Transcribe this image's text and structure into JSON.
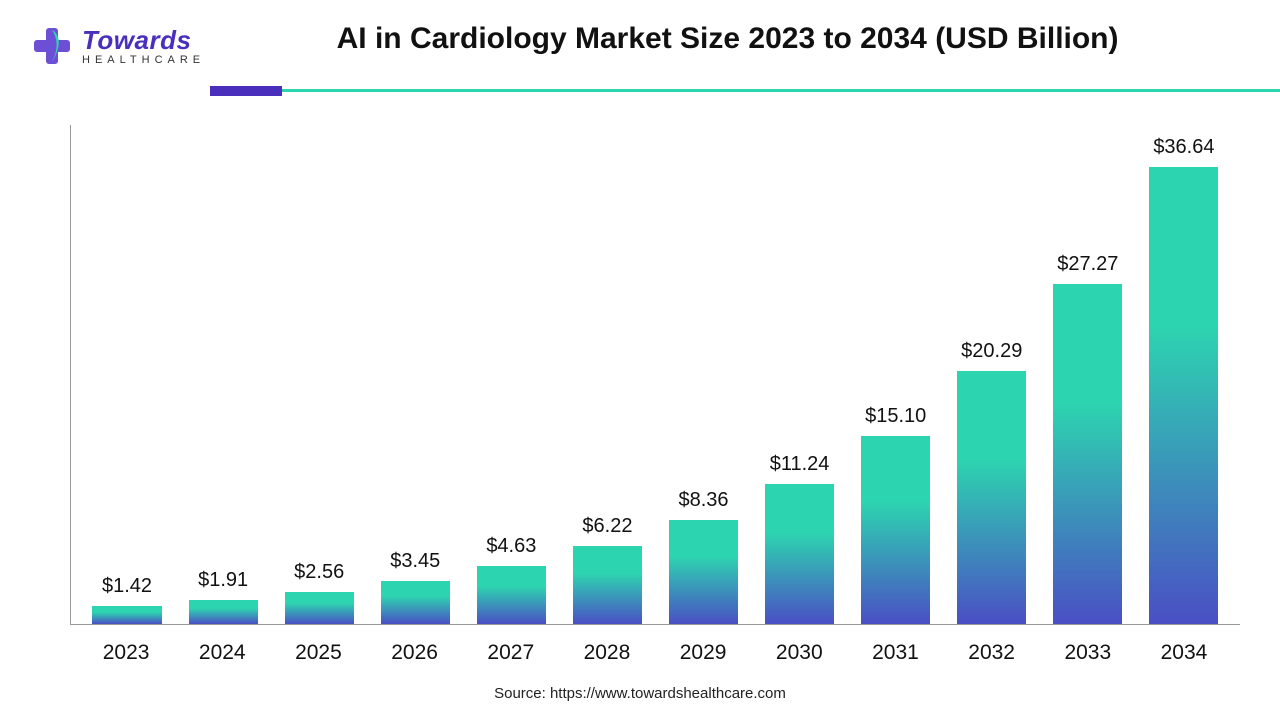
{
  "logo": {
    "main": "Towards",
    "sub": "HEALTHCARE",
    "purple": "#4a2fbd",
    "teal": "#2dd4b0"
  },
  "chart": {
    "type": "bar",
    "title": "AI in Cardiology Market Size 2023 to 2034 (USD Billion)",
    "title_fontsize": 30,
    "categories": [
      "2023",
      "2024",
      "2025",
      "2026",
      "2027",
      "2028",
      "2029",
      "2030",
      "2031",
      "2032",
      "2033",
      "2034"
    ],
    "values": [
      1.42,
      1.91,
      2.56,
      3.45,
      4.63,
      6.22,
      8.36,
      11.24,
      15.1,
      20.29,
      27.27,
      36.64
    ],
    "value_labels": [
      "$1.42",
      "$1.91",
      "$2.56",
      "$3.45",
      "$4.63",
      "$6.22",
      "$8.36",
      "$11.24",
      "$15.10",
      "$20.29",
      "$27.27",
      "$36.64"
    ],
    "ylim": [
      0,
      40
    ],
    "bar_gradient_top": "#2dd4b0",
    "bar_gradient_bottom": "#4a4fc4",
    "bar_width": 0.72,
    "background_color": "#ffffff",
    "axis_color": "#999999",
    "label_fontsize": 21,
    "value_fontsize": 20,
    "divider_purple": "#4a2fbd",
    "divider_teal": "#2dd4b0"
  },
  "source": "Source: https://www.towardshealthcare.com"
}
